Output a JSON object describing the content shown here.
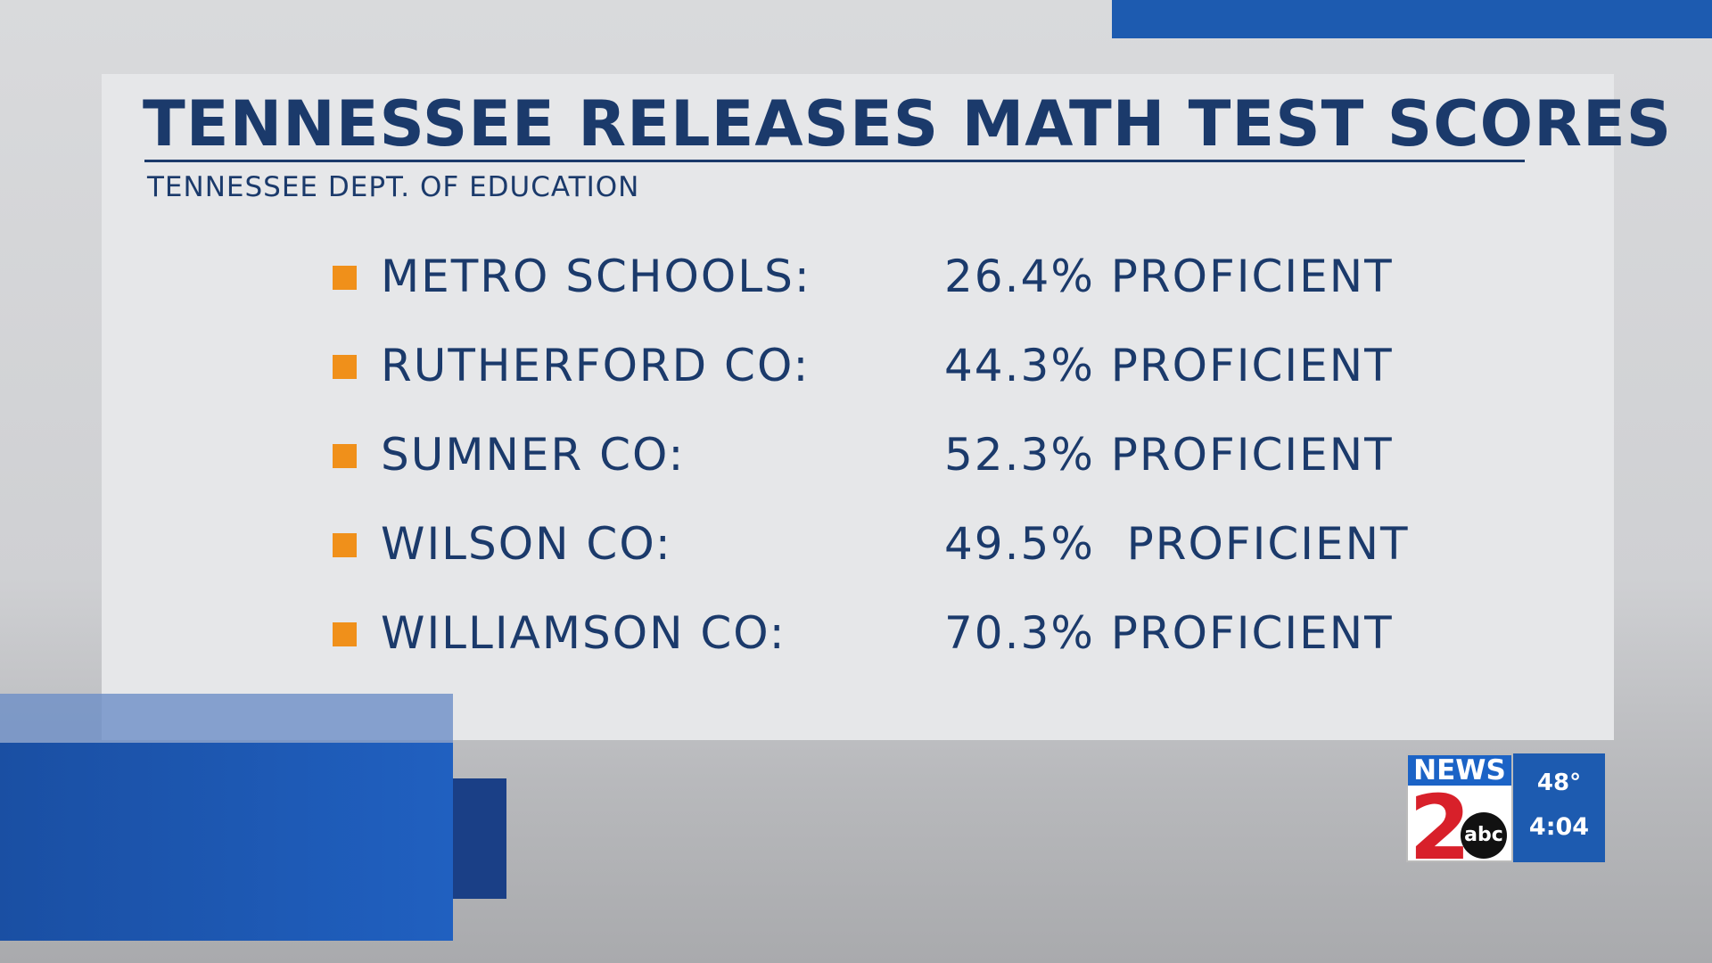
{
  "header": {
    "title": "TENNESSEE RELEASES MATH TEST SCORES",
    "source": "TENNESSEE DEPT. OF EDUCATION"
  },
  "rows": [
    {
      "name": "METRO SCHOOLS:",
      "value": "26.4% PROFICIENT"
    },
    {
      "name": "RUTHERFORD CO:",
      "value": "44.3% PROFICIENT"
    },
    {
      "name": "SUMNER CO:",
      "value": "52.3% PROFICIENT"
    },
    {
      "name": "WILSON CO:",
      "value": "49.5%  PROFICIENT"
    },
    {
      "name": "WILLIAMSON CO:",
      "value": "70.3% PROFICIENT"
    }
  ],
  "bug": {
    "brand": "NEWS",
    "channel": "2",
    "network": "abc",
    "temperature": "48°",
    "time": "4:04"
  }
}
